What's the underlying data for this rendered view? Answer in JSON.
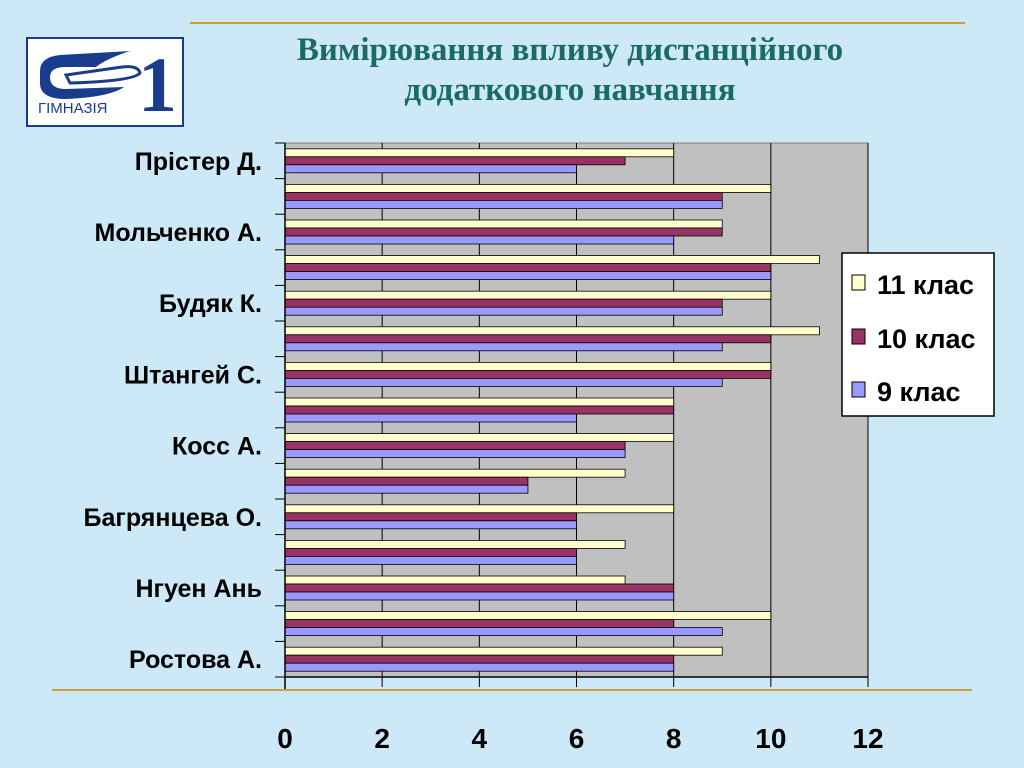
{
  "slide": {
    "title_line1": "Вимірювання впливу дистанційного",
    "title_line2": "додаткового навчання",
    "logo_text": "ГІМНАЗІЯ",
    "logo_number": "1"
  },
  "colors": {
    "background": "#cde8f7",
    "title": "#1b6b63",
    "rule": "#c8a040",
    "plot_area": "#c0c0c0"
  },
  "chart_data": {
    "type": "bar",
    "orientation": "horizontal",
    "title": "",
    "xlabel": "",
    "ylabel": "",
    "xlim": [
      0,
      12
    ],
    "xticks": [
      0,
      2,
      4,
      6,
      8,
      10,
      12
    ],
    "grid": true,
    "legend_position": "right",
    "categories": [
      "Прістер Д.",
      "Мольченко А.",
      "Будяк К.",
      "Штангей С.",
      "Косс А.",
      "Багрянцева О.",
      "Нгуен Ань",
      "Ростова А."
    ],
    "rows": [
      {
        "label": "Прістер Д.",
        "values": {
          "11": 8,
          "10": 7,
          "9": 6
        }
      },
      {
        "label": "",
        "values": {
          "11": 10,
          "10": 9,
          "9": 9
        }
      },
      {
        "label": "Мольченко А.",
        "values": {
          "11": 9,
          "10": 9,
          "9": 8
        }
      },
      {
        "label": "",
        "values": {
          "11": 11,
          "10": 10,
          "9": 10
        }
      },
      {
        "label": "Будяк К.",
        "values": {
          "11": 10,
          "10": 9,
          "9": 9
        }
      },
      {
        "label": "",
        "values": {
          "11": 11,
          "10": 10,
          "9": 9
        }
      },
      {
        "label": "Штангей С.",
        "values": {
          "11": 10,
          "10": 10,
          "9": 9
        }
      },
      {
        "label": "",
        "values": {
          "11": 8,
          "10": 8,
          "9": 6
        }
      },
      {
        "label": "Косс А.",
        "values": {
          "11": 8,
          "10": 7,
          "9": 7
        }
      },
      {
        "label": "",
        "values": {
          "11": 7,
          "10": 5,
          "9": 5
        }
      },
      {
        "label": "Багрянцева О.",
        "values": {
          "11": 8,
          "10": 6,
          "9": 6
        }
      },
      {
        "label": "",
        "values": {
          "11": 7,
          "10": 6,
          "9": 6
        }
      },
      {
        "label": "Нгуен Ань",
        "values": {
          "11": 7,
          "10": 8,
          "9": 8
        }
      },
      {
        "label": "",
        "values": {
          "11": 10,
          "10": 8,
          "9": 9
        }
      },
      {
        "label": "Ростова А.",
        "values": {
          "11": 9,
          "10": 8,
          "9": 8
        }
      }
    ],
    "series": [
      {
        "key": "11",
        "name": "11 клас",
        "color": "#ffffcc"
      },
      {
        "key": "10",
        "name": "10 клас",
        "color": "#993366"
      },
      {
        "key": "9",
        "name": "9 клас",
        "color": "#9999ff"
      }
    ]
  }
}
